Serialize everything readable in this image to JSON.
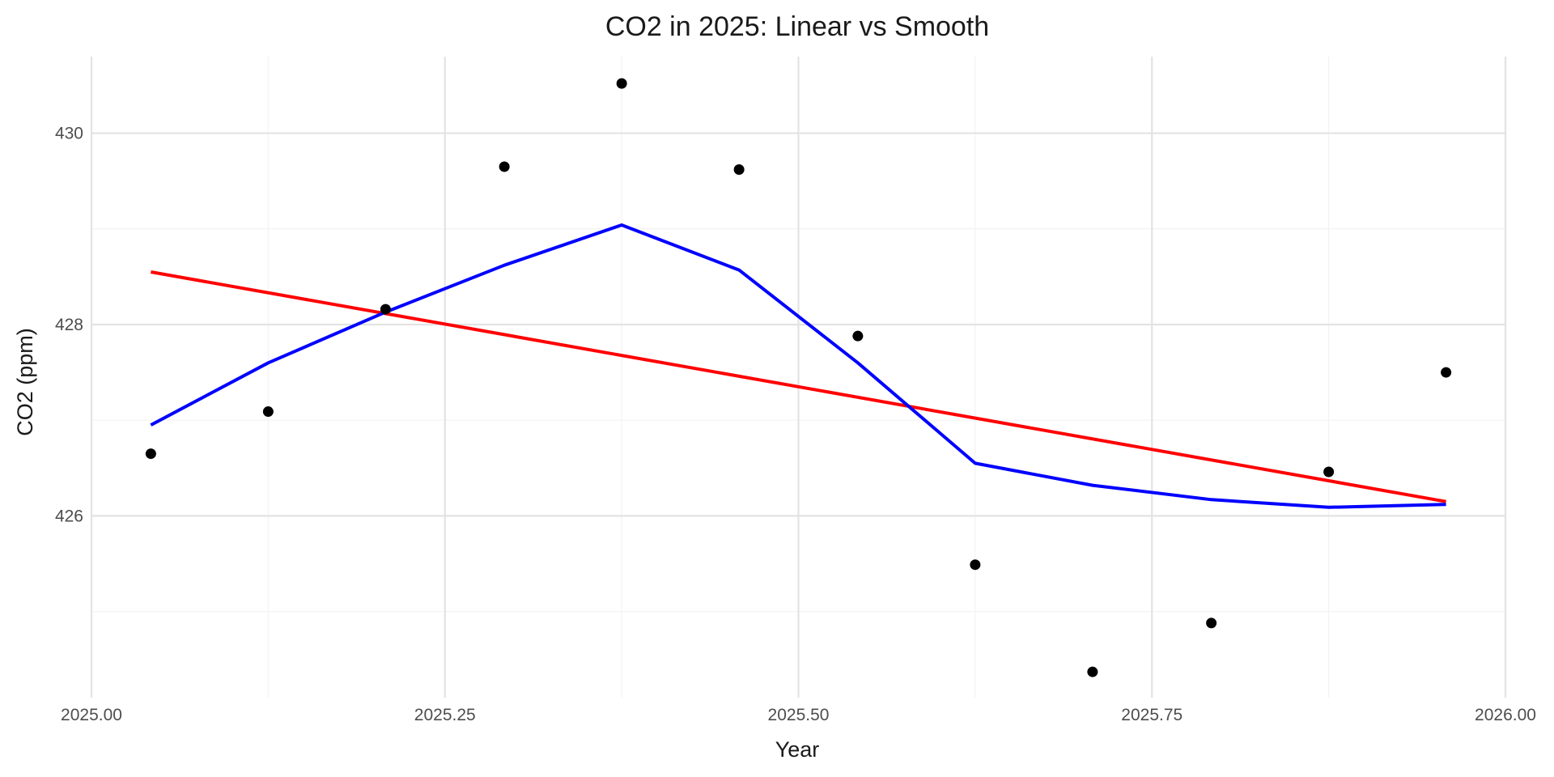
{
  "chart_data": {
    "type": "line",
    "title": "CO2 in 2025: Linear vs Smooth",
    "xlabel": "Year",
    "ylabel": "CO2 (ppm)",
    "xlim": [
      2025.0,
      2026.0
    ],
    "ylim": [
      424.1,
      430.8
    ],
    "x_ticks": [
      2025.0,
      2025.25,
      2025.5,
      2025.75,
      2026.0
    ],
    "x_tick_labels": [
      "2025.00",
      "2025.25",
      "2025.50",
      "2025.75",
      "2026.00"
    ],
    "y_ticks": [
      426,
      428,
      430
    ],
    "y_tick_labels": [
      "426",
      "428",
      "430"
    ],
    "grid": true,
    "legend": "none",
    "points": {
      "color": "#000000",
      "x": [
        2025.042,
        2025.125,
        2025.208,
        2025.292,
        2025.375,
        2025.458,
        2025.542,
        2025.625,
        2025.708,
        2025.792,
        2025.875,
        2025.958
      ],
      "y": [
        426.65,
        427.09,
        428.16,
        429.65,
        430.52,
        429.62,
        427.88,
        425.49,
        424.37,
        424.88,
        426.46,
        427.5
      ]
    },
    "series": [
      {
        "kind": "linear",
        "color": "#ff0000",
        "x": [
          2025.042,
          2025.958
        ],
        "y": [
          428.55,
          426.15
        ]
      },
      {
        "kind": "smooth",
        "color": "#0000ff",
        "x": [
          2025.042,
          2025.125,
          2025.208,
          2025.292,
          2025.375,
          2025.458,
          2025.542,
          2025.625,
          2025.708,
          2025.792,
          2025.875,
          2025.958
        ],
        "y": [
          426.95,
          427.6,
          428.13,
          428.62,
          429.04,
          428.57,
          427.6,
          426.55,
          426.32,
          426.17,
          426.09,
          426.12
        ]
      }
    ]
  }
}
